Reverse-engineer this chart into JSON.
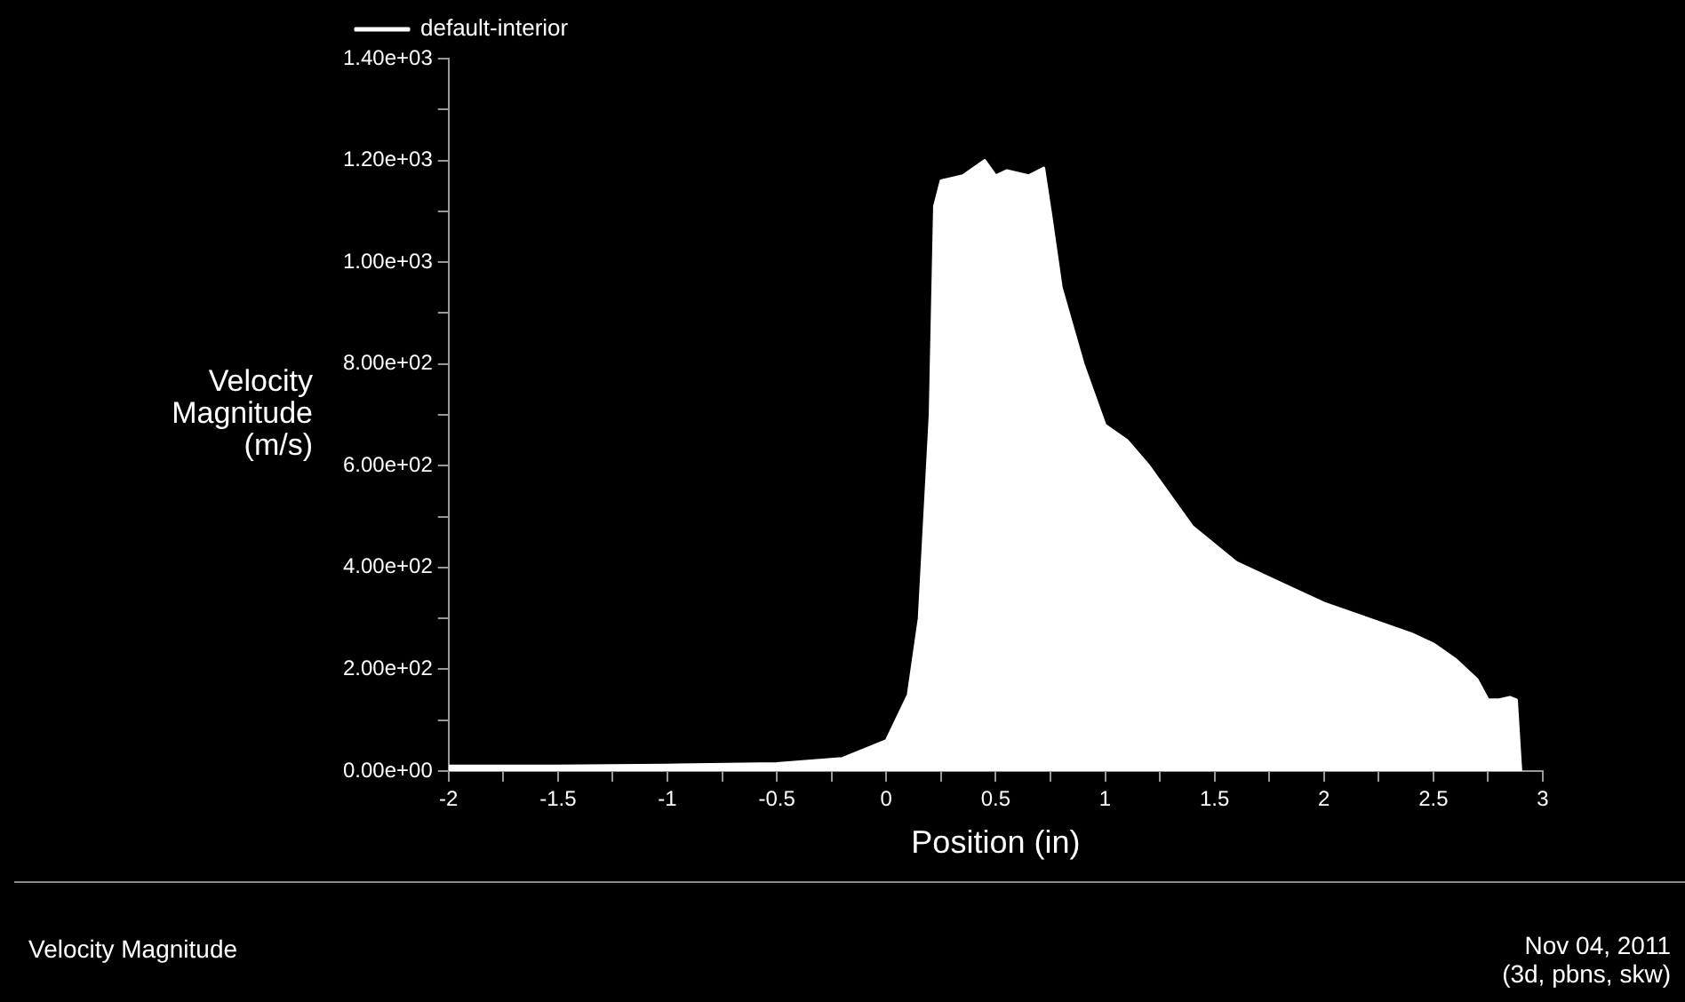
{
  "chart_data": {
    "type": "area",
    "xlabel": "Position (in)",
    "ylabel": "Velocity Magnitude (m/s)",
    "legend": "top left",
    "grid": false,
    "marker": "none",
    "xlim": [
      -2,
      3
    ],
    "ylim": [
      0,
      1400
    ],
    "xticks": [
      -2,
      {
        "value": -1.75,
        "label": null
      },
      -1.5,
      {
        "value": -1.25,
        "label": null
      },
      -1,
      {
        "value": -0.75,
        "label": null
      },
      -0.5,
      {
        "value": -0.25,
        "label": null
      },
      0,
      {
        "value": 0.25,
        "label": null
      },
      0.5,
      {
        "value": 0.75,
        "label": null
      },
      1,
      {
        "value": 1.25,
        "label": null
      },
      1.5,
      {
        "value": 1.75,
        "label": null
      },
      2,
      {
        "value": 2.25,
        "label": null
      },
      2.5,
      {
        "value": 2.75,
        "label": null
      },
      3
    ],
    "yticks": [
      {
        "value": 0,
        "label": "0.00e+00"
      },
      {
        "value": 100,
        "label": null
      },
      {
        "value": 200,
        "label": "2.00e+02"
      },
      {
        "value": 300,
        "label": null
      },
      {
        "value": 400,
        "label": "4.00e+02"
      },
      {
        "value": 500,
        "label": null
      },
      {
        "value": 600,
        "label": "6.00e+02"
      },
      {
        "value": 700,
        "label": null
      },
      {
        "value": 800,
        "label": "8.00e+02"
      },
      {
        "value": 900,
        "label": null
      },
      {
        "value": 1000,
        "label": "1.00e+03"
      },
      {
        "value": 1100,
        "label": null
      },
      {
        "value": 1200,
        "label": "1.20e+03"
      },
      {
        "value": 1300,
        "label": null
      },
      {
        "value": 1400,
        "label": "1.40e+03"
      }
    ],
    "series": [
      {
        "name": "default-interior",
        "color": "#ffffff",
        "x": [
          -2,
          -1.5,
          -1,
          -0.5,
          -0.2,
          0,
          0.1,
          0.15,
          0.2,
          0.22,
          0.25,
          0.35,
          0.45,
          0.5,
          0.55,
          0.65,
          0.72,
          0.75,
          0.8,
          0.9,
          1,
          1.1,
          1.2,
          1.4,
          1.6,
          1.8,
          2,
          2.2,
          2.4,
          2.5,
          2.6,
          2.7,
          2.75,
          2.8,
          2.85,
          2.88,
          2.9
        ],
        "values": [
          10,
          10,
          12,
          15,
          25,
          60,
          150,
          300,
          700,
          1110,
          1160,
          1170,
          1200,
          1170,
          1180,
          1170,
          1185,
          1100,
          950,
          800,
          680,
          650,
          600,
          480,
          410,
          370,
          330,
          300,
          270,
          250,
          220,
          180,
          140,
          140,
          145,
          140,
          0
        ]
      }
    ],
    "annotations": [
      "Velocity Magnitude",
      "Nov 04, 2011",
      "(3d, pbns, skw)"
    ]
  }
}
